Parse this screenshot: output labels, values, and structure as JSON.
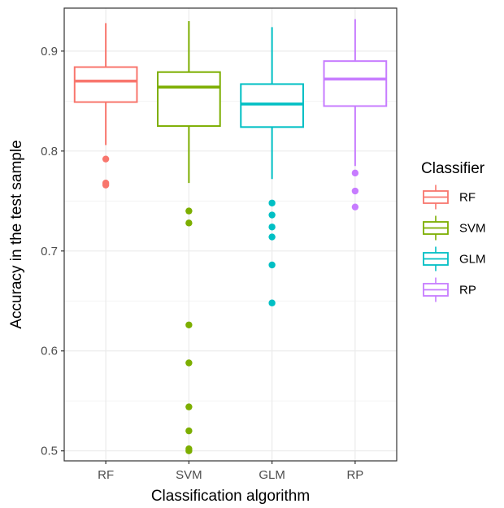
{
  "chart_data": {
    "type": "boxplot",
    "xlabel": "Classification algorithm",
    "ylabel": "Accuracy in the test sample",
    "ylim": [
      0.49,
      0.943
    ],
    "yticks": [
      0.5,
      0.6,
      0.7,
      0.8,
      0.9
    ],
    "ytick_labels": [
      "0.5",
      "0.6",
      "0.7",
      "0.8",
      "0.9"
    ],
    "grid": true,
    "legend_position": "right",
    "legend_title": "Classifier",
    "categories": [
      "RF",
      "SVM",
      "GLM",
      "RP"
    ],
    "boxes": [
      {
        "name": "RF",
        "color": "#F8766D",
        "whisker_low": 0.806,
        "q1": 0.849,
        "median": 0.87,
        "q3": 0.884,
        "whisker_high": 0.928,
        "outliers": [
          0.792,
          0.768,
          0.766
        ]
      },
      {
        "name": "SVM",
        "color": "#7CAE00",
        "whisker_low": 0.768,
        "q1": 0.825,
        "median": 0.864,
        "q3": 0.879,
        "whisker_high": 0.93,
        "outliers": [
          0.74,
          0.728,
          0.626,
          0.588,
          0.544,
          0.52,
          0.502,
          0.5
        ]
      },
      {
        "name": "GLM",
        "color": "#00BFC4",
        "whisker_low": 0.772,
        "q1": 0.824,
        "median": 0.847,
        "q3": 0.867,
        "whisker_high": 0.924,
        "outliers": [
          0.748,
          0.736,
          0.724,
          0.714,
          0.686,
          0.648
        ]
      },
      {
        "name": "RP",
        "color": "#C77CFF",
        "whisker_low": 0.785,
        "q1": 0.845,
        "median": 0.872,
        "q3": 0.89,
        "whisker_high": 0.932,
        "outliers": [
          0.778,
          0.76,
          0.744
        ]
      }
    ]
  }
}
